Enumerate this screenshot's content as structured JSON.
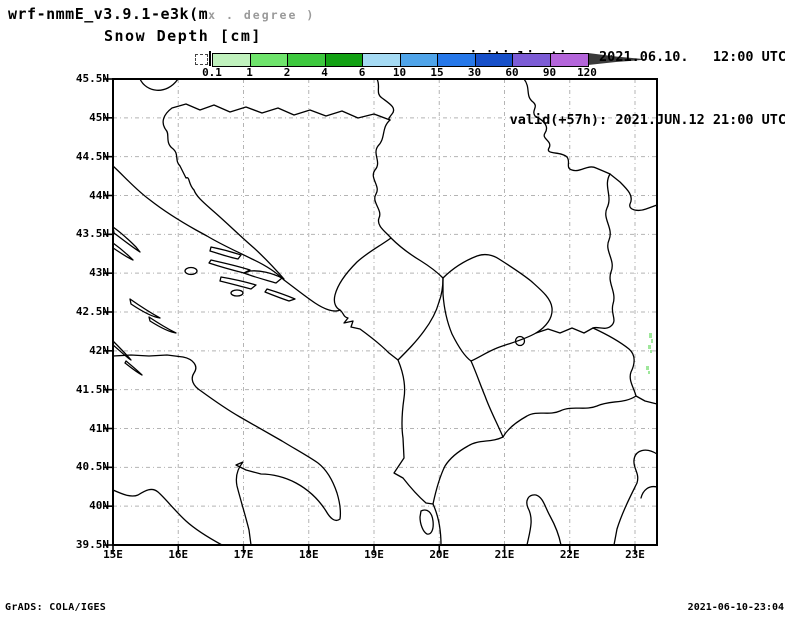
{
  "header": {
    "model_title": "wrf-nmmE_v3.9.1-e3k(m",
    "grid_note": "x . degree )",
    "field_title": "Snow Depth [cm]",
    "init_line": "initialisation: 2021.06.10.   12:00 UTC",
    "valid_line": "valid(+57h): 2021.JUN.12 21:00 UTC"
  },
  "colorbar": {
    "ticks": [
      "0.1",
      "1",
      "2",
      "4",
      "6",
      "10",
      "15",
      "30",
      "60",
      "90",
      "120"
    ],
    "colors": [
      "#c0f1bd",
      "#6fe46c",
      "#3dc83e",
      "#12a113",
      "#a5daf3",
      "#4fa4e9",
      "#2678e9",
      "#1750c9",
      "#7c5cd5",
      "#b465da"
    ],
    "overflow_color": "#3a3a3a"
  },
  "axes": {
    "lat_labels": [
      "45.5N",
      "45N",
      "44.5N",
      "44N",
      "43.5N",
      "43N",
      "42.5N",
      "42N",
      "41.5N",
      "41N",
      "40.5N",
      "40N",
      "39.5N"
    ],
    "lon_labels": [
      "15E",
      "16E",
      "17E",
      "18E",
      "19E",
      "20E",
      "21E",
      "22E",
      "23E"
    ]
  },
  "map": {
    "snow_patches": {
      "color": "#9fe79b",
      "cells": [
        [
          649,
          333,
          3,
          5
        ],
        [
          651,
          339,
          2,
          4
        ],
        [
          648,
          345,
          3,
          4
        ],
        [
          650,
          350,
          2,
          3
        ],
        [
          646,
          366,
          3,
          4
        ],
        [
          648,
          371,
          2,
          3
        ]
      ]
    }
  },
  "footer": {
    "left": "GrADS: COLA/IGES",
    "right": "2021-06-10-23:04"
  }
}
